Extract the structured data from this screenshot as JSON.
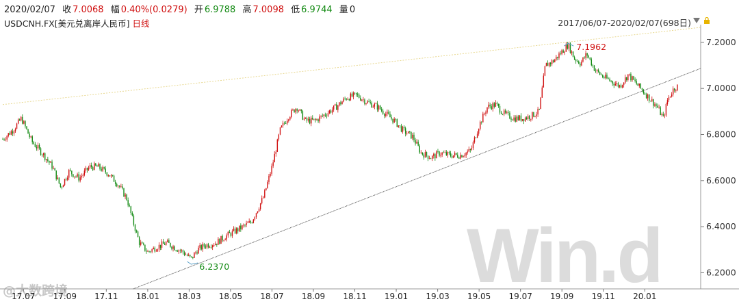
{
  "header": {
    "date": "2020/02/07",
    "close_label": "收",
    "close_value": "7.0068",
    "change_label": "幅",
    "change_value": "0.40%(0.0279)",
    "open_label": "开",
    "open_value": "6.9788",
    "high_label": "高",
    "high_value": "7.0098",
    "low_label": "低",
    "low_value": "6.9744",
    "volume_label": "量",
    "volume_value": "0"
  },
  "symbol": {
    "code": "USDCNH.FX",
    "name": "[美元兑离岸人民币]",
    "period": "日线"
  },
  "range_label": "2017/06/07-2020/02/07(698日)",
  "watermark": {
    "main": "Win.d",
    "corner": "@大数跨境"
  },
  "chart_data": {
    "type": "candlestick",
    "yticks": [
      "7.2000",
      "7.0000",
      "6.8000",
      "6.6000",
      "6.4000",
      "6.2000"
    ],
    "ylim": [
      6.13,
      7.265
    ],
    "x_labels": [
      "17.07",
      "17.09",
      "17.11",
      "18.01",
      "18.03",
      "18.05",
      "18.07",
      "18.09",
      "18.11",
      "19.01",
      "19.03",
      "19.05",
      "19.07",
      "19.09",
      "19.11",
      "20.01"
    ],
    "annotations": {
      "high": "7.1962",
      "low": "6.2370"
    },
    "trend_points": [
      {
        "m": 0.0,
        "v": 6.78
      },
      {
        "m": 0.5,
        "v": 6.82
      },
      {
        "m": 0.9,
        "v": 6.87
      },
      {
        "m": 1.4,
        "v": 6.77
      },
      {
        "m": 1.9,
        "v": 6.72
      },
      {
        "m": 2.4,
        "v": 6.66
      },
      {
        "m": 2.8,
        "v": 6.57
      },
      {
        "m": 3.2,
        "v": 6.64
      },
      {
        "m": 3.7,
        "v": 6.61
      },
      {
        "m": 4.2,
        "v": 6.66
      },
      {
        "m": 4.6,
        "v": 6.66
      },
      {
        "m": 5.1,
        "v": 6.63
      },
      {
        "m": 5.6,
        "v": 6.58
      },
      {
        "m": 6.0,
        "v": 6.52
      },
      {
        "m": 6.3,
        "v": 6.42
      },
      {
        "m": 6.6,
        "v": 6.33
      },
      {
        "m": 7.0,
        "v": 6.29
      },
      {
        "m": 7.4,
        "v": 6.31
      },
      {
        "m": 7.9,
        "v": 6.33
      },
      {
        "m": 8.3,
        "v": 6.31
      },
      {
        "m": 8.7,
        "v": 6.29
      },
      {
        "m": 9.1,
        "v": 6.26
      },
      {
        "m": 9.4,
        "v": 6.3
      },
      {
        "m": 9.8,
        "v": 6.32
      },
      {
        "m": 10.3,
        "v": 6.33
      },
      {
        "m": 10.8,
        "v": 6.36
      },
      {
        "m": 11.4,
        "v": 6.39
      },
      {
        "m": 12.0,
        "v": 6.42
      },
      {
        "m": 12.6,
        "v": 6.53
      },
      {
        "m": 13.0,
        "v": 6.66
      },
      {
        "m": 13.4,
        "v": 6.82
      },
      {
        "m": 13.8,
        "v": 6.88
      },
      {
        "m": 14.2,
        "v": 6.92
      },
      {
        "m": 14.6,
        "v": 6.86
      },
      {
        "m": 15.1,
        "v": 6.86
      },
      {
        "m": 15.6,
        "v": 6.89
      },
      {
        "m": 16.1,
        "v": 6.92
      },
      {
        "m": 16.6,
        "v": 6.96
      },
      {
        "m": 17.1,
        "v": 6.97
      },
      {
        "m": 17.6,
        "v": 6.94
      },
      {
        "m": 18.1,
        "v": 6.92
      },
      {
        "m": 18.5,
        "v": 6.89
      },
      {
        "m": 18.9,
        "v": 6.86
      },
      {
        "m": 19.3,
        "v": 6.82
      },
      {
        "m": 19.8,
        "v": 6.79
      },
      {
        "m": 20.2,
        "v": 6.72
      },
      {
        "m": 20.7,
        "v": 6.7
      },
      {
        "m": 21.1,
        "v": 6.72
      },
      {
        "m": 21.6,
        "v": 6.71
      },
      {
        "m": 22.1,
        "v": 6.71
      },
      {
        "m": 22.6,
        "v": 6.73
      },
      {
        "m": 23.0,
        "v": 6.84
      },
      {
        "m": 23.4,
        "v": 6.92
      },
      {
        "m": 23.8,
        "v": 6.93
      },
      {
        "m": 24.2,
        "v": 6.89
      },
      {
        "m": 24.7,
        "v": 6.87
      },
      {
        "m": 25.1,
        "v": 6.87
      },
      {
        "m": 25.5,
        "v": 6.88
      },
      {
        "m": 25.9,
        "v": 6.9
      },
      {
        "m": 26.2,
        "v": 7.1
      },
      {
        "m": 26.6,
        "v": 7.12
      },
      {
        "m": 27.0,
        "v": 7.16
      },
      {
        "m": 27.3,
        "v": 7.19
      },
      {
        "m": 27.6,
        "v": 7.13
      },
      {
        "m": 27.9,
        "v": 7.11
      },
      {
        "m": 28.2,
        "v": 7.15
      },
      {
        "m": 28.6,
        "v": 7.08
      },
      {
        "m": 29.0,
        "v": 7.05
      },
      {
        "m": 29.4,
        "v": 7.03
      },
      {
        "m": 29.8,
        "v": 7.01
      },
      {
        "m": 30.2,
        "v": 7.06
      },
      {
        "m": 30.6,
        "v": 7.02
      },
      {
        "m": 31.0,
        "v": 6.98
      },
      {
        "m": 31.3,
        "v": 6.95
      },
      {
        "m": 31.6,
        "v": 6.92
      },
      {
        "m": 31.9,
        "v": 6.87
      },
      {
        "m": 32.1,
        "v": 6.95
      },
      {
        "m": 32.4,
        "v": 7.0
      },
      {
        "m": 32.6,
        "v": 7.01
      }
    ],
    "trendline": [
      {
        "m": 6.3,
        "v": 6.13
      },
      {
        "m": 33.7,
        "v": 7.087
      }
    ],
    "guide_line": [
      {
        "m": 0.0,
        "v": 6.93
      },
      {
        "m": 33.7,
        "v": 7.265
      }
    ],
    "colors": {
      "up": "#d01010",
      "down": "#138a13",
      "trend": "#333333",
      "guide": "#e8d890"
    }
  }
}
